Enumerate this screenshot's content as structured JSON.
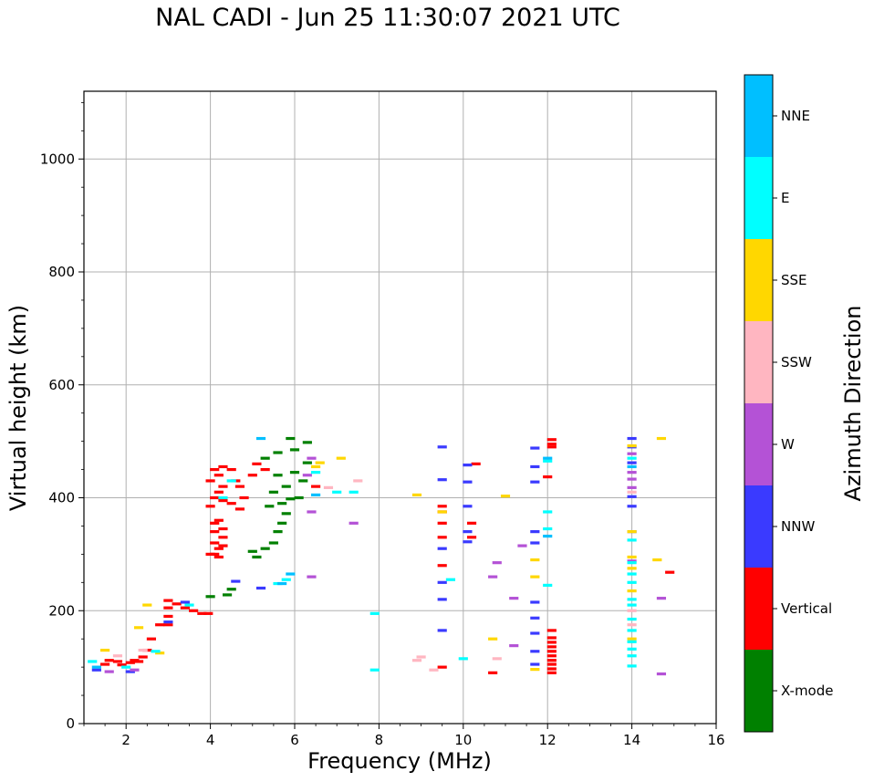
{
  "chart_data": {
    "type": "scatter",
    "title": "NAL CADI - Jun 25 11:30:07 2021 UTC",
    "xlabel": "Frequency (MHz)",
    "ylabel": "Virtual height (km)",
    "xlim": [
      1,
      16
    ],
    "ylim": [
      0,
      1120
    ],
    "xticks": [
      2,
      4,
      6,
      8,
      10,
      12,
      14,
      16
    ],
    "yticks": [
      0,
      200,
      400,
      600,
      800,
      1000
    ],
    "grid": true,
    "colorbar": {
      "label": "Azimuth Direction",
      "categories": [
        {
          "name": "X-mode",
          "color": "#008000"
        },
        {
          "name": "Vertical",
          "color": "#ff0000"
        },
        {
          "name": "NNW",
          "color": "#3a3aff"
        },
        {
          "name": "W",
          "color": "#b452d6"
        },
        {
          "name": "SSW",
          "color": "#ffb6c1"
        },
        {
          "name": "SSE",
          "color": "#ffd700"
        },
        {
          "name": "E",
          "color": "#00ffff"
        },
        {
          "name": "NNE",
          "color": "#00bfff"
        }
      ]
    },
    "series": [
      {
        "name": "Vertical",
        "points": [
          [
            1.5,
            105
          ],
          [
            1.6,
            112
          ],
          [
            1.8,
            110
          ],
          [
            1.9,
            104
          ],
          [
            2.1,
            108
          ],
          [
            2.2,
            112
          ],
          [
            2.3,
            110
          ],
          [
            2.4,
            118
          ],
          [
            2.5,
            130
          ],
          [
            2.6,
            150
          ],
          [
            2.8,
            175
          ],
          [
            3.0,
            175
          ],
          [
            3.0,
            190
          ],
          [
            3.0,
            205
          ],
          [
            3.0,
            218
          ],
          [
            3.2,
            212
          ],
          [
            3.4,
            205
          ],
          [
            3.6,
            200
          ],
          [
            3.8,
            195
          ],
          [
            3.95,
            195
          ],
          [
            4.0,
            300
          ],
          [
            4.1,
            300
          ],
          [
            4.2,
            295
          ],
          [
            4.2,
            310
          ],
          [
            4.3,
            315
          ],
          [
            4.1,
            320
          ],
          [
            4.3,
            330
          ],
          [
            4.1,
            340
          ],
          [
            4.3,
            345
          ],
          [
            4.1,
            355
          ],
          [
            4.2,
            360
          ],
          [
            4.0,
            385
          ],
          [
            4.3,
            395
          ],
          [
            4.1,
            400
          ],
          [
            4.2,
            410
          ],
          [
            4.3,
            420
          ],
          [
            4.0,
            430
          ],
          [
            4.2,
            440
          ],
          [
            4.1,
            450
          ],
          [
            4.3,
            455
          ],
          [
            4.5,
            450
          ],
          [
            4.6,
            430
          ],
          [
            4.7,
            420
          ],
          [
            4.5,
            390
          ],
          [
            4.7,
            380
          ],
          [
            4.8,
            400
          ],
          [
            5.0,
            440
          ],
          [
            5.1,
            460
          ],
          [
            5.3,
            450
          ],
          [
            6.5,
            420
          ],
          [
            9.5,
            385
          ],
          [
            9.5,
            375
          ],
          [
            9.5,
            355
          ],
          [
            9.5,
            330
          ],
          [
            9.5,
            280
          ],
          [
            9.5,
            100
          ],
          [
            10.2,
            355
          ],
          [
            10.2,
            330
          ],
          [
            10.3,
            460
          ],
          [
            10.7,
            90
          ],
          [
            12.0,
            437
          ],
          [
            12.1,
            90
          ],
          [
            12.1,
            97
          ],
          [
            12.1,
            105
          ],
          [
            12.1,
            112
          ],
          [
            12.1,
            120
          ],
          [
            12.1,
            128
          ],
          [
            12.1,
            136
          ],
          [
            12.1,
            144
          ],
          [
            12.1,
            152
          ],
          [
            12.1,
            165
          ],
          [
            12.1,
            490
          ],
          [
            12.1,
            495
          ],
          [
            12.1,
            503
          ],
          [
            14.9,
            268
          ]
        ]
      },
      {
        "name": "X-mode",
        "points": [
          [
            4.0,
            225
          ],
          [
            4.4,
            228
          ],
          [
            4.5,
            238
          ],
          [
            5.0,
            305
          ],
          [
            5.1,
            295
          ],
          [
            5.3,
            310
          ],
          [
            5.5,
            320
          ],
          [
            5.6,
            340
          ],
          [
            5.7,
            355
          ],
          [
            5.8,
            372
          ],
          [
            5.4,
            385
          ],
          [
            5.7,
            390
          ],
          [
            5.9,
            398
          ],
          [
            5.5,
            410
          ],
          [
            5.8,
            420
          ],
          [
            6.1,
            400
          ],
          [
            6.2,
            430
          ],
          [
            5.6,
            440
          ],
          [
            6.0,
            445
          ],
          [
            6.3,
            462
          ],
          [
            5.3,
            470
          ],
          [
            5.6,
            480
          ],
          [
            6.0,
            485
          ],
          [
            6.3,
            498
          ],
          [
            5.9,
            505
          ]
        ]
      },
      {
        "name": "NNW",
        "points": [
          [
            1.3,
            95
          ],
          [
            2.1,
            92
          ],
          [
            3.0,
            180
          ],
          [
            3.4,
            215
          ],
          [
            4.6,
            252
          ],
          [
            5.2,
            240
          ],
          [
            9.5,
            490
          ],
          [
            9.5,
            432
          ],
          [
            9.5,
            310
          ],
          [
            9.5,
            250
          ],
          [
            9.5,
            220
          ],
          [
            9.5,
            165
          ],
          [
            10.1,
            458
          ],
          [
            10.1,
            428
          ],
          [
            10.1,
            385
          ],
          [
            10.1,
            340
          ],
          [
            10.1,
            322
          ],
          [
            11.7,
            488
          ],
          [
            11.7,
            455
          ],
          [
            11.7,
            428
          ],
          [
            11.7,
            340
          ],
          [
            11.7,
            320
          ],
          [
            11.7,
            215
          ],
          [
            11.7,
            187
          ],
          [
            11.7,
            160
          ],
          [
            11.7,
            128
          ],
          [
            11.7,
            105
          ],
          [
            14.0,
            505
          ],
          [
            14.0,
            490
          ],
          [
            14.0,
            462
          ],
          [
            14.0,
            402
          ],
          [
            14.0,
            385
          ],
          [
            14.0,
            340
          ]
        ]
      },
      {
        "name": "W",
        "points": [
          [
            1.6,
            92
          ],
          [
            2.2,
            95
          ],
          [
            6.4,
            470
          ],
          [
            6.3,
            440
          ],
          [
            6.4,
            375
          ],
          [
            6.4,
            260
          ],
          [
            7.4,
            355
          ],
          [
            10.7,
            260
          ],
          [
            10.8,
            285
          ],
          [
            11.2,
            222
          ],
          [
            11.2,
            138
          ],
          [
            11.4,
            315
          ],
          [
            14.0,
            478
          ],
          [
            14.0,
            445
          ],
          [
            14.0,
            433
          ],
          [
            14.0,
            418
          ],
          [
            14.0,
            288
          ],
          [
            14.7,
            222
          ],
          [
            14.7,
            88
          ]
        ]
      },
      {
        "name": "SSW",
        "points": [
          [
            1.8,
            120
          ],
          [
            2.4,
            130
          ],
          [
            6.8,
            418
          ],
          [
            7.5,
            430
          ],
          [
            8.9,
            112
          ],
          [
            9.0,
            118
          ],
          [
            9.3,
            95
          ],
          [
            10.8,
            115
          ],
          [
            14.0,
            410
          ],
          [
            14.0,
            200
          ],
          [
            14.0,
            175
          ]
        ]
      },
      {
        "name": "SSE",
        "points": [
          [
            1.5,
            130
          ],
          [
            2.3,
            170
          ],
          [
            2.5,
            210
          ],
          [
            2.8,
            125
          ],
          [
            6.5,
            455
          ],
          [
            6.6,
            462
          ],
          [
            7.1,
            470
          ],
          [
            8.9,
            405
          ],
          [
            9.5,
            375
          ],
          [
            10.7,
            150
          ],
          [
            11.0,
            403
          ],
          [
            11.7,
            290
          ],
          [
            11.7,
            260
          ],
          [
            11.7,
            96
          ],
          [
            14.0,
            492
          ],
          [
            14.0,
            340
          ],
          [
            14.0,
            295
          ],
          [
            14.0,
            275
          ],
          [
            14.0,
            235
          ],
          [
            14.0,
            150
          ],
          [
            14.6,
            290
          ],
          [
            14.7,
            505
          ]
        ]
      },
      {
        "name": "E",
        "points": [
          [
            1.2,
            110
          ],
          [
            2.0,
            100
          ],
          [
            2.7,
            128
          ],
          [
            3.5,
            210
          ],
          [
            4.3,
            400
          ],
          [
            4.5,
            430
          ],
          [
            5.6,
            248
          ],
          [
            5.8,
            255
          ],
          [
            6.5,
            445
          ],
          [
            7.0,
            410
          ],
          [
            7.4,
            410
          ],
          [
            7.9,
            195
          ],
          [
            7.9,
            95
          ],
          [
            9.7,
            255
          ],
          [
            10.0,
            115
          ],
          [
            12.0,
            465
          ],
          [
            12.0,
            375
          ],
          [
            12.0,
            345
          ],
          [
            12.0,
            245
          ],
          [
            14.0,
            470
          ],
          [
            14.0,
            325
          ],
          [
            14.0,
            285
          ],
          [
            14.0,
            265
          ],
          [
            14.0,
            250
          ],
          [
            14.0,
            220
          ],
          [
            14.0,
            210
          ],
          [
            14.0,
            185
          ],
          [
            14.0,
            165
          ],
          [
            14.0,
            145
          ],
          [
            14.0,
            132
          ],
          [
            14.0,
            120
          ],
          [
            14.0,
            102
          ]
        ]
      },
      {
        "name": "NNE",
        "points": [
          [
            1.3,
            100
          ],
          [
            5.2,
            505
          ],
          [
            5.7,
            248
          ],
          [
            5.9,
            265
          ],
          [
            6.5,
            405
          ],
          [
            12.0,
            470
          ],
          [
            12.0,
            332
          ],
          [
            14.0,
            455
          ]
        ]
      }
    ]
  }
}
